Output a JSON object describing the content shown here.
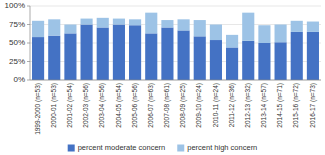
{
  "chart_data": {
    "type": "bar",
    "stacked": true,
    "categories": [
      "1999-2000 (n=53)",
      "2000-01 (n=53)",
      "2001-02 (n=54)",
      "2002-03 (n=56)",
      "2003-04 (n=56)",
      "2004-05 (n=54)",
      "2005-06 (n=56)",
      "2006-07 (n=63)",
      "2007-08 (n=61)",
      "2008-09 (n=25)",
      "2009-10 (n=24)",
      "2010-11 (n=24)",
      "2011-12 (n=36)",
      "2012-13 (n=32)",
      "2013-14 (n=57)",
      "2014-15 (n=71)",
      "2015-16 (n=72)",
      "2016-17 (n=73)"
    ],
    "series": [
      {
        "name": "percent moderate concern",
        "color": "#4472C4",
        "values": [
          58,
          60,
          63,
          75,
          71,
          75,
          74,
          63,
          71,
          67,
          59,
          54,
          44,
          53,
          50,
          51,
          65,
          65
        ]
      },
      {
        "name": "percent high concern",
        "color": "#9DC3E6",
        "values": [
          22,
          22,
          12,
          8,
          13,
          8,
          8,
          28,
          10,
          15,
          22,
          21,
          17,
          38,
          24,
          24,
          15,
          14
        ]
      }
    ],
    "ylim": [
      0,
      100
    ],
    "yticks": [
      {
        "value": 0,
        "label": "0%"
      },
      {
        "value": 25,
        "label": "25%"
      },
      {
        "value": 50,
        "label": "50%"
      },
      {
        "value": 75,
        "label": "75%"
      },
      {
        "value": 100,
        "label": "100%"
      }
    ],
    "grid": true,
    "legend": "bottom"
  }
}
